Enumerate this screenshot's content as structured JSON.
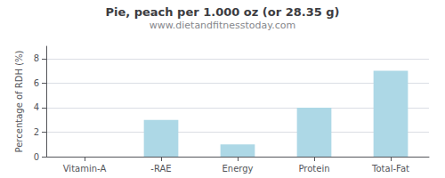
{
  "chart_data": {
    "type": "bar",
    "title": "Pie, peach per 1.000 oz (or 28.35 g)",
    "subtitle": "www.dietandfitnesstoday.com",
    "categories": [
      "Vitamin-A",
      "-RAE",
      "Energy",
      "Protein",
      "Total-Fat"
    ],
    "values": [
      0,
      3,
      1,
      4,
      7
    ],
    "color": "#add8e6",
    "ylabel": "Percentage of RDH (%)",
    "ylim": [
      0,
      9
    ],
    "yticks": [
      0,
      2,
      4,
      6,
      8
    ],
    "grid": true
  }
}
